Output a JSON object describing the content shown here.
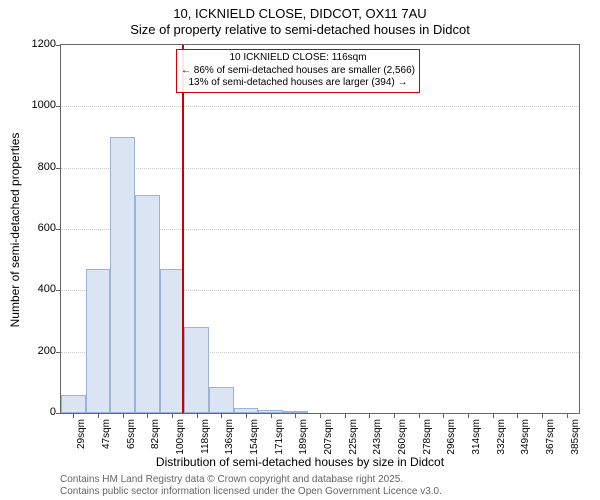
{
  "chart": {
    "type": "histogram",
    "title_line1": "10, ICKNIELD CLOSE, DIDCOT, OX11 7AU",
    "title_line2": "Size of property relative to semi-detached houses in Didcot",
    "ylabel": "Number of semi-detached properties",
    "xlabel": "Distribution of semi-detached houses by size in Didcot",
    "ylim": [
      0,
      1200
    ],
    "ytick_step": 200,
    "yticks": [
      0,
      200,
      400,
      600,
      800,
      1000,
      1200
    ],
    "x_categories": [
      "29sqm",
      "47sqm",
      "65sqm",
      "82sqm",
      "100sqm",
      "118sqm",
      "136sqm",
      "154sqm",
      "171sqm",
      "189sqm",
      "207sqm",
      "225sqm",
      "243sqm",
      "260sqm",
      "278sqm",
      "296sqm",
      "314sqm",
      "332sqm",
      "349sqm",
      "367sqm",
      "385sqm"
    ],
    "values": [
      60,
      470,
      900,
      710,
      470,
      280,
      85,
      15,
      10,
      5,
      0,
      0,
      0,
      0,
      0,
      0,
      0,
      0,
      0,
      0,
      0
    ],
    "bar_fill": "#dbe4f3",
    "bar_border": "#9db2d8",
    "grid_color": "#cccccc",
    "axis_color": "#666666",
    "background_color": "#ffffff",
    "bar_gap_ratio": 0.0,
    "marker_line": {
      "position_index": 4.9,
      "color": "#cc0000",
      "width": 2
    },
    "annotation": {
      "line1": "10 ICKNIELD CLOSE: 116sqm",
      "line2": "← 86% of semi-detached houses are smaller (2,566)",
      "line3": "13% of semi-detached houses are larger (394) →",
      "border_color": "#cc0000"
    },
    "footer1": "Contains HM Land Registry data © Crown copyright and database right 2025.",
    "footer2": "Contains public sector information licensed under the Open Government Licence v3.0.",
    "title_fontsize": 13,
    "label_fontsize": 12,
    "tick_fontsize": 11,
    "footer_fontsize": 10
  }
}
